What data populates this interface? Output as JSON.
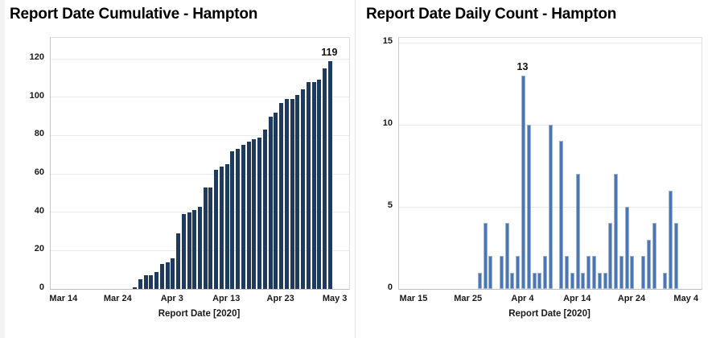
{
  "chart_data": [
    {
      "type": "bar",
      "title": "Report Date Cumulative - Hampton",
      "xlabel": "Report Date [2020]",
      "categories": [
        "Mar 27",
        "Mar 28",
        "Mar 29",
        "Mar 30",
        "Mar 31",
        "Apr 1",
        "Apr 2",
        "Apr 3",
        "Apr 4",
        "Apr 5",
        "Apr 6",
        "Apr 7",
        "Apr 8",
        "Apr 9",
        "Apr 10",
        "Apr 11",
        "Apr 12",
        "Apr 13",
        "Apr 14",
        "Apr 15",
        "Apr 16",
        "Apr 17",
        "Apr 18",
        "Apr 19",
        "Apr 20",
        "Apr 21",
        "Apr 22",
        "Apr 23",
        "Apr 24",
        "Apr 25",
        "Apr 26",
        "Apr 27",
        "Apr 28",
        "Apr 29",
        "Apr 30",
        "May 1",
        "May 2"
      ],
      "values": [
        1,
        5,
        7,
        7,
        9,
        13,
        14,
        16,
        29,
        39,
        40,
        41,
        43,
        53,
        53,
        62,
        64,
        65,
        72,
        73,
        75,
        77,
        78,
        79,
        83,
        90,
        92,
        97,
        99,
        99,
        101,
        104,
        108,
        108,
        109,
        115,
        119
      ],
      "ylim": [
        0,
        131
      ],
      "y_ticks": [
        0,
        20,
        40,
        60,
        80,
        100,
        120
      ],
      "x_ticks": [
        {
          "label": "Mar 14",
          "day": 2.5
        },
        {
          "label": "Mar 24",
          "day": 12.5
        },
        {
          "label": "Apr 3",
          "day": 22.5
        },
        {
          "label": "Apr 13",
          "day": 32.5
        },
        {
          "label": "Apr 23",
          "day": 42.5
        },
        {
          "label": "May 3",
          "day": 52.5
        }
      ],
      "x_span_days": 55,
      "series_start_day": 15.5,
      "bar_color": "#1f3a5f",
      "bar_border_color": "#1f3a5f",
      "grid": true,
      "legend": "none",
      "annotations": [
        {
          "index": 36,
          "text": "119"
        }
      ]
    },
    {
      "type": "bar",
      "title": "Report Date Daily Count - Hampton",
      "xlabel": "Report Date [2020]",
      "categories": [
        "Mar 27",
        "Mar 28",
        "Mar 29",
        "Mar 30",
        "Mar 31",
        "Apr 1",
        "Apr 2",
        "Apr 3",
        "Apr 4",
        "Apr 5",
        "Apr 6",
        "Apr 7",
        "Apr 8",
        "Apr 9",
        "Apr 10",
        "Apr 11",
        "Apr 12",
        "Apr 13",
        "Apr 14",
        "Apr 15",
        "Apr 16",
        "Apr 17",
        "Apr 18",
        "Apr 19",
        "Apr 20",
        "Apr 21",
        "Apr 22",
        "Apr 23",
        "Apr 24",
        "Apr 25",
        "Apr 26",
        "Apr 27",
        "Apr 28",
        "Apr 29",
        "Apr 30",
        "May 1",
        "May 2"
      ],
      "values": [
        1,
        4,
        2,
        0,
        2,
        4,
        1,
        2,
        13,
        10,
        1,
        1,
        2,
        10,
        0,
        9,
        2,
        1,
        7,
        1,
        2,
        2,
        1,
        1,
        4,
        7,
        2,
        5,
        2,
        0,
        2,
        3,
        4,
        0,
        1,
        6,
        4
      ],
      "ylim": [
        0,
        15.3
      ],
      "y_ticks": [
        0,
        5,
        10,
        15
      ],
      "x_ticks": [
        {
          "label": "Mar 15",
          "day": 2.8
        },
        {
          "label": "Mar 25",
          "day": 12.8
        },
        {
          "label": "Apr 4",
          "day": 22.8
        },
        {
          "label": "Apr 14",
          "day": 32.8
        },
        {
          "label": "Apr 24",
          "day": 42.8
        },
        {
          "label": "May 4",
          "day": 52.8
        }
      ],
      "x_span_days": 55.5,
      "series_start_day": 14.8,
      "bar_color": "#4a77b4",
      "bar_border_color": "#9db3d6",
      "grid": true,
      "legend": "none",
      "annotations": [
        {
          "index": 8,
          "text": "13"
        }
      ]
    }
  ]
}
